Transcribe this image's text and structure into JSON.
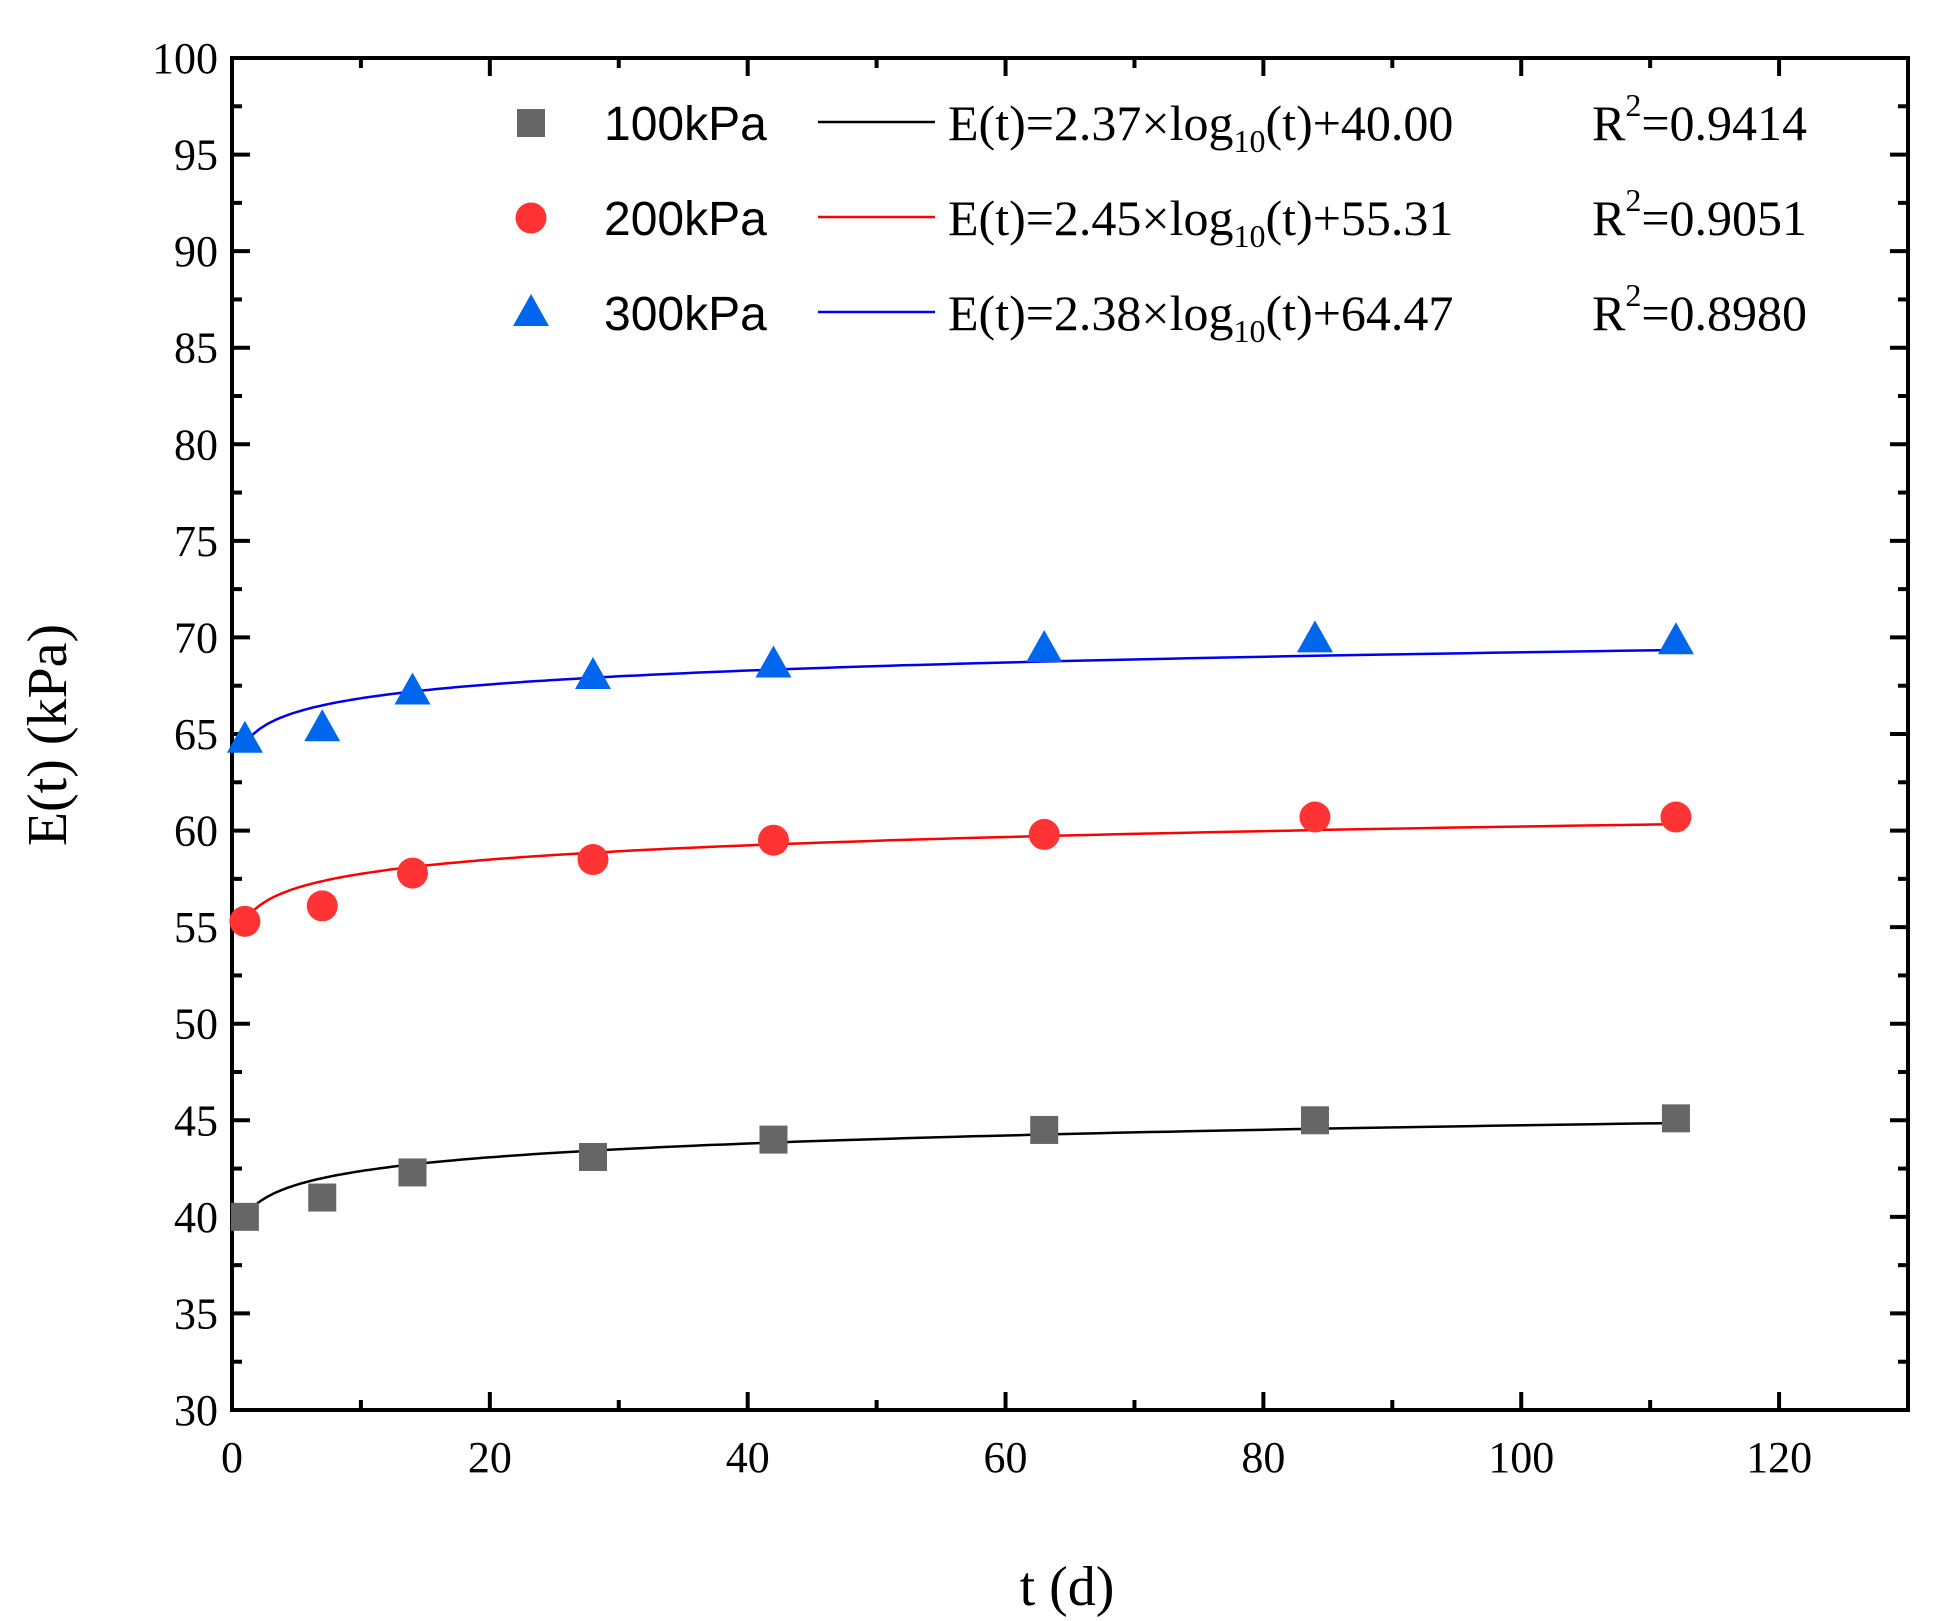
{
  "chart_data": {
    "type": "scatter",
    "title": "",
    "xlabel": "t (d)",
    "ylabel": "E(t) (kPa)",
    "xlim": [
      0,
      130
    ],
    "ylim": [
      30,
      100
    ],
    "x_ticks": [
      0,
      20,
      40,
      60,
      80,
      100,
      120
    ],
    "y_ticks": [
      30,
      35,
      40,
      45,
      50,
      55,
      60,
      65,
      70,
      75,
      80,
      85,
      90,
      95,
      100
    ],
    "x_minor_step": 10,
    "y_minor_step": 2.5,
    "legend_position": "top-right",
    "grid": false,
    "series": [
      {
        "name": "100kPa",
        "marker": "square",
        "color": "#666666",
        "fit_color": "#000000",
        "x": [
          1,
          7,
          14,
          28,
          42,
          63,
          84,
          112
        ],
        "y": [
          40.0,
          41.0,
          42.3,
          43.1,
          44.0,
          44.5,
          45.0,
          45.1
        ],
        "fit": {
          "a": 2.37,
          "b": 40.0,
          "coef": "2.37",
          "const": "40.00",
          "r2": "0.9414"
        }
      },
      {
        "name": "200kPa",
        "marker": "circle",
        "color": "#ff3333",
        "fit_color": "#ff0000",
        "x": [
          1,
          7,
          14,
          28,
          42,
          63,
          84,
          112
        ],
        "y": [
          55.3,
          56.1,
          57.8,
          58.5,
          59.5,
          59.8,
          60.7,
          60.7
        ],
        "fit": {
          "a": 2.45,
          "b": 55.31,
          "coef": "2.45",
          "const": "55.31",
          "r2": "0.9051"
        }
      },
      {
        "name": "300kPa",
        "marker": "triangle",
        "color": "#0066ee",
        "fit_color": "#0000ee",
        "x": [
          1,
          7,
          14,
          28,
          42,
          63,
          84,
          112
        ],
        "y": [
          64.7,
          65.3,
          67.2,
          68.0,
          68.6,
          69.4,
          69.9,
          69.8
        ],
        "fit": {
          "a": 2.38,
          "b": 64.47,
          "coef": "2.38",
          "const": "64.47",
          "r2": "0.8980"
        }
      }
    ]
  },
  "legend": {
    "eq_prefix": "E(t)=",
    "eq_times_log": "×log",
    "eq_log_base": "10",
    "eq_var": "(t)+",
    "r_label": "R",
    "r_sup": "2",
    "r_eq": "="
  }
}
